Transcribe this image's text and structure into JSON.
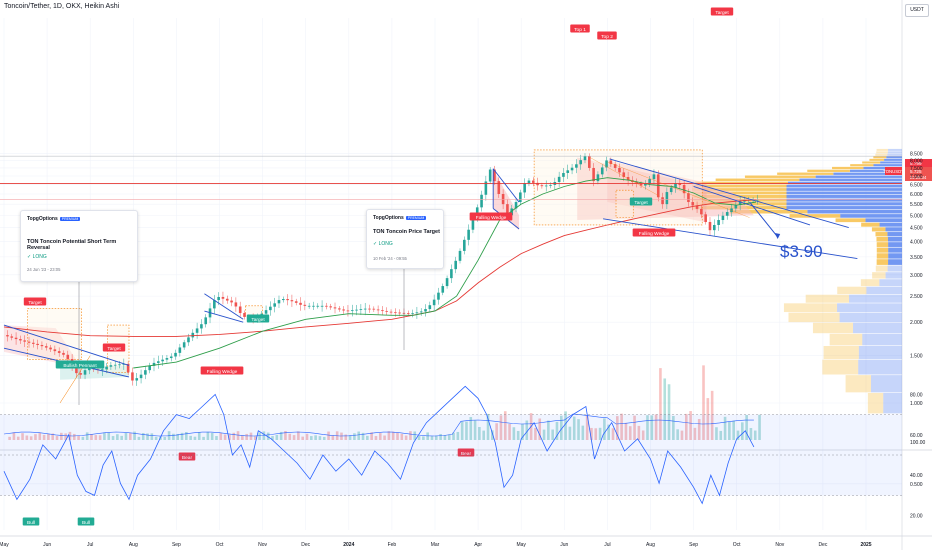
{
  "header": {
    "title": "Toncoin/Tether, 1D, OKX, Heikin Ashi"
  },
  "currency_label": "USDT",
  "idea_cards": [
    {
      "brand": "TopgOptions",
      "badge": "PREMIUM",
      "title": "TON Toncoin Potential Short Term Reversal",
      "side": "LONG",
      "date": "24 Jun '23 - 23:05"
    },
    {
      "brand": "TopgOptions",
      "badge": "PREMIUM",
      "title": "TON Toncoin Price Target",
      "side": "LONG",
      "date": "10 Feb '24 - 09:55"
    }
  ],
  "annotations": {
    "big_target": "$3.90",
    "labels": [
      "Target",
      "Bullish Pennant",
      "Target",
      "Target",
      "Falling Wedge",
      "Falling Wedge",
      "Top 1",
      "Top 2",
      "Target",
      "Target",
      "Falling Wedge"
    ],
    "bear": "Bear",
    "bull": "Bull",
    "ticker_tag": "TONUSDT",
    "tag_price_1": "5.799",
    "tag_price_2": "5.725",
    "tag_time": "22:26:34"
  },
  "colors": {
    "up": "#26a69a",
    "down": "#ef5350",
    "ma_green": "#2e9e4a",
    "ma_red": "#e53935",
    "accent_blue": "#2952cc",
    "rsi": "#2962ff",
    "target_red": "#f23645",
    "bull_green": "#22ab94",
    "vp_blue": "#5b86f0",
    "vp_orange": "#f7c04a"
  },
  "chart_data": [
    {
      "type": "candlestick",
      "title": "Toncoin/Tether, 1D, OKX, Heikin Ashi",
      "x_ticks": [
        "May",
        "Jun",
        "Jul",
        "Aug",
        "Sep",
        "Oct",
        "Nov",
        "Dec",
        "2024",
        "Feb",
        "Mar",
        "Apr",
        "May",
        "Jun",
        "Jul",
        "Aug",
        "Sep",
        "Oct",
        "Nov",
        "Dec",
        "2025"
      ],
      "y_axis": {
        "scale": "log",
        "ticks": [
          8.5,
          8.0,
          7.5,
          7.0,
          6.5,
          6.0,
          5.5,
          5.0,
          4.5,
          4.0,
          3.5,
          3.0,
          2.5,
          2.0,
          1.5,
          1.0,
          0.5
        ]
      },
      "price_path": [
        [
          0,
          1.8
        ],
        [
          0.5,
          1.7
        ],
        [
          1,
          1.62
        ],
        [
          1.5,
          1.5
        ],
        [
          1.8,
          1.25
        ],
        [
          2,
          1.35
        ],
        [
          2.3,
          1.32
        ],
        [
          2.5,
          1.38
        ],
        [
          2.9,
          1.4
        ],
        [
          3.0,
          1.2
        ],
        [
          3.2,
          1.25
        ],
        [
          3.5,
          1.4
        ],
        [
          4,
          1.5
        ],
        [
          4.3,
          1.72
        ],
        [
          4.7,
          2.0
        ],
        [
          5,
          2.5
        ],
        [
          5.4,
          2.35
        ],
        [
          5.6,
          2.1
        ],
        [
          5.9,
          2.05
        ],
        [
          6.2,
          2.25
        ],
        [
          6.5,
          2.45
        ],
        [
          6.8,
          2.38
        ],
        [
          7,
          2.3
        ],
        [
          7.5,
          2.3
        ],
        [
          8,
          2.2
        ],
        [
          8.5,
          2.25
        ],
        [
          9,
          2.18
        ],
        [
          9.5,
          2.15
        ],
        [
          9.8,
          2.2
        ],
        [
          10,
          2.35
        ],
        [
          10.3,
          2.8
        ],
        [
          10.6,
          3.5
        ],
        [
          10.9,
          4.6
        ],
        [
          11.1,
          5.6
        ],
        [
          11.35,
          7.4
        ],
        [
          11.55,
          6.0
        ],
        [
          11.75,
          5.0
        ],
        [
          11.95,
          5.6
        ],
        [
          12.2,
          6.8
        ],
        [
          12.5,
          6.4
        ],
        [
          12.8,
          6.5
        ],
        [
          13.0,
          7.1
        ],
        [
          13.3,
          7.6
        ],
        [
          13.55,
          8.3
        ],
        [
          13.75,
          6.7
        ],
        [
          13.9,
          7.3
        ],
        [
          14.05,
          8.0
        ],
        [
          14.25,
          7.5
        ],
        [
          14.5,
          6.8
        ],
        [
          14.7,
          6.6
        ],
        [
          14.9,
          6.4
        ],
        [
          15.15,
          7.1
        ],
        [
          15.3,
          5.2
        ],
        [
          15.45,
          6.1
        ],
        [
          15.7,
          6.7
        ],
        [
          15.95,
          5.6
        ],
        [
          16.2,
          5.2
        ],
        [
          16.45,
          4.4
        ],
        [
          16.7,
          4.9
        ],
        [
          16.95,
          5.3
        ],
        [
          17.2,
          5.7
        ],
        [
          17.45,
          5.72
        ]
      ],
      "series": [
        {
          "name": "",
          "values": [
            [
              0,
              1.92
            ],
            [
              1,
              1.84
            ],
            [
              2,
              1.78
            ],
            [
              3,
              1.77
            ],
            [
              4,
              1.77
            ],
            [
              5,
              1.8
            ],
            [
              6,
              1.85
            ],
            [
              7,
              1.92
            ],
            [
              8,
              1.98
            ],
            [
              9,
              2.05
            ],
            [
              10,
              2.2
            ],
            [
              10.5,
              2.4
            ],
            [
              11,
              2.8
            ],
            [
              11.5,
              3.2
            ],
            [
              12,
              3.6
            ],
            [
              12.5,
              3.9
            ],
            [
              13,
              4.2
            ],
            [
              13.5,
              4.4
            ],
            [
              14,
              4.6
            ],
            [
              14.5,
              4.8
            ],
            [
              15,
              5.0
            ],
            [
              15.5,
              5.2
            ],
            [
              16,
              5.4
            ],
            [
              16.5,
              5.55
            ],
            [
              17.45,
              5.72
            ]
          ]
        },
        {
          "name": "",
          "values": [
            [
              3,
              1.35
            ],
            [
              4,
              1.42
            ],
            [
              5,
              1.6
            ],
            [
              6,
              1.85
            ],
            [
              7,
              2.05
            ],
            [
              8,
              2.15
            ],
            [
              9,
              2.12
            ],
            [
              9.5,
              2.12
            ],
            [
              10,
              2.2
            ],
            [
              10.5,
              2.5
            ],
            [
              11,
              3.4
            ],
            [
              11.5,
              4.8
            ],
            [
              12,
              5.5
            ],
            [
              12.5,
              6.0
            ],
            [
              13,
              6.4
            ],
            [
              13.5,
              6.7
            ],
            [
              14,
              6.9
            ],
            [
              14.5,
              6.75
            ],
            [
              15,
              6.5
            ],
            [
              15.5,
              6.4
            ],
            [
              16,
              6.05
            ],
            [
              16.5,
              5.55
            ],
            [
              17,
              5.45
            ],
            [
              17.45,
              5.6
            ]
          ]
        }
      ],
      "levels": [
        6.57,
        5.72,
        8.3
      ],
      "projection_target": 3.9
    },
    {
      "type": "bar",
      "title": "",
      "y_axis": {
        "ticks": [
          100.0
        ]
      }
    },
    {
      "type": "line",
      "title": "",
      "y_axis": {
        "ticks": [
          80.0,
          60.0,
          40.0,
          20.0
        ],
        "band": [
          30,
          70
        ]
      },
      "values": [
        [
          0,
          42
        ],
        [
          0.3,
          28
        ],
        [
          0.6,
          38
        ],
        [
          0.9,
          55
        ],
        [
          1.2,
          48
        ],
        [
          1.5,
          60
        ],
        [
          1.7,
          40
        ],
        [
          1.9,
          32
        ],
        [
          2.1,
          30
        ],
        [
          2.3,
          45
        ],
        [
          2.5,
          52
        ],
        [
          2.7,
          36
        ],
        [
          2.9,
          28
        ],
        [
          3.1,
          40
        ],
        [
          3.4,
          48
        ],
        [
          3.7,
          62
        ],
        [
          4.0,
          70
        ],
        [
          4.3,
          68
        ],
        [
          4.6,
          74
        ],
        [
          4.9,
          80
        ],
        [
          5.1,
          70
        ],
        [
          5.3,
          50
        ],
        [
          5.5,
          55
        ],
        [
          5.7,
          44
        ],
        [
          5.9,
          62
        ],
        [
          6.2,
          58
        ],
        [
          6.5,
          52
        ],
        [
          6.8,
          46
        ],
        [
          7.1,
          38
        ],
        [
          7.4,
          50
        ],
        [
          7.7,
          42
        ],
        [
          8.0,
          48
        ],
        [
          8.3,
          40
        ],
        [
          8.6,
          52
        ],
        [
          8.9,
          46
        ],
        [
          9.2,
          38
        ],
        [
          9.5,
          56
        ],
        [
          9.8,
          66
        ],
        [
          10.1,
          72
        ],
        [
          10.4,
          78
        ],
        [
          10.7,
          84
        ],
        [
          11.0,
          78
        ],
        [
          11.2,
          70
        ],
        [
          11.4,
          56
        ],
        [
          11.6,
          34
        ],
        [
          11.8,
          40
        ],
        [
          12.0,
          58
        ],
        [
          12.3,
          66
        ],
        [
          12.6,
          52
        ],
        [
          12.9,
          62
        ],
        [
          13.2,
          70
        ],
        [
          13.5,
          74
        ],
        [
          13.7,
          48
        ],
        [
          13.9,
          60
        ],
        [
          14.1,
          66
        ],
        [
          14.4,
          52
        ],
        [
          14.7,
          58
        ],
        [
          15.0,
          48
        ],
        [
          15.2,
          36
        ],
        [
          15.4,
          52
        ],
        [
          15.7,
          44
        ],
        [
          16.0,
          34
        ],
        [
          16.2,
          26
        ],
        [
          16.4,
          40
        ],
        [
          16.6,
          30
        ],
        [
          16.8,
          46
        ],
        [
          17.0,
          58
        ],
        [
          17.2,
          62
        ],
        [
          17.4,
          54
        ]
      ]
    }
  ]
}
